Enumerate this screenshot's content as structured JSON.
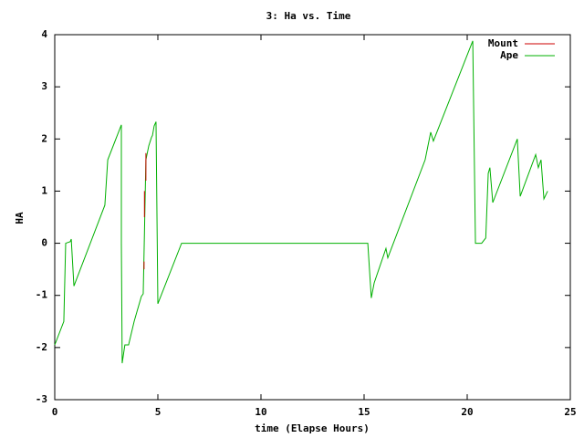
{
  "chart_data": {
    "type": "line",
    "title": "3: Ha vs. Time",
    "x_label": "time (Elapse Hours)",
    "y_label": "HA",
    "xlim": [
      0,
      25
    ],
    "xticks": [
      0,
      5,
      10,
      15,
      20,
      25
    ],
    "ylim": [
      -3,
      4
    ],
    "yticks": [
      -3,
      -2,
      -1,
      0,
      1,
      2,
      3,
      4
    ],
    "legend": "top-right",
    "grid": false,
    "series": [
      {
        "name": "Mount",
        "color": "#cc0000",
        "x": [
          4.33,
          4.33,
          4.34,
          4.35,
          4.35,
          4.36,
          4.42,
          4.42
        ],
        "values": [
          -0.35,
          -0.5,
          null,
          1.0,
          0.5,
          null,
          1.73,
          1.2
        ]
      },
      {
        "name": "Ape",
        "color": "#00b000",
        "x": [
          0,
          0.44,
          0.53,
          0.75,
          0.8,
          0.93,
          2.43,
          2.57,
          3.23,
          3.23,
          3.27,
          3.4,
          3.58,
          3.85,
          3.98,
          4.2,
          4.29,
          4.34,
          4.42,
          4.56,
          4.69,
          4.74,
          4.82,
          4.91,
          5.0,
          6.15,
          15.18,
          15.35,
          15.49,
          16.06,
          16.15,
          17.96,
          18.23,
          18.36,
          20.27,
          20.4,
          20.7,
          20.9,
          21.02,
          21.1,
          21.24,
          22.43,
          22.57,
          23.32,
          23.45,
          23.58,
          23.72,
          23.9
        ],
        "values": [
          -1.95,
          -1.5,
          0,
          0.03,
          0.08,
          -0.82,
          0.73,
          1.6,
          2.27,
          0,
          -2.3,
          -1.95,
          -1.95,
          -1.5,
          -1.32,
          -1.02,
          -0.97,
          0,
          1.6,
          1.87,
          2.03,
          2.07,
          2.25,
          2.33,
          -1.16,
          0,
          0,
          -1.05,
          -0.76,
          -0.1,
          -0.28,
          1.6,
          2.13,
          1.96,
          3.88,
          0,
          0,
          0.1,
          1.34,
          1.45,
          0.78,
          2.0,
          0.9,
          1.7,
          1.45,
          1.6,
          0.85,
          1.0
        ]
      }
    ]
  }
}
